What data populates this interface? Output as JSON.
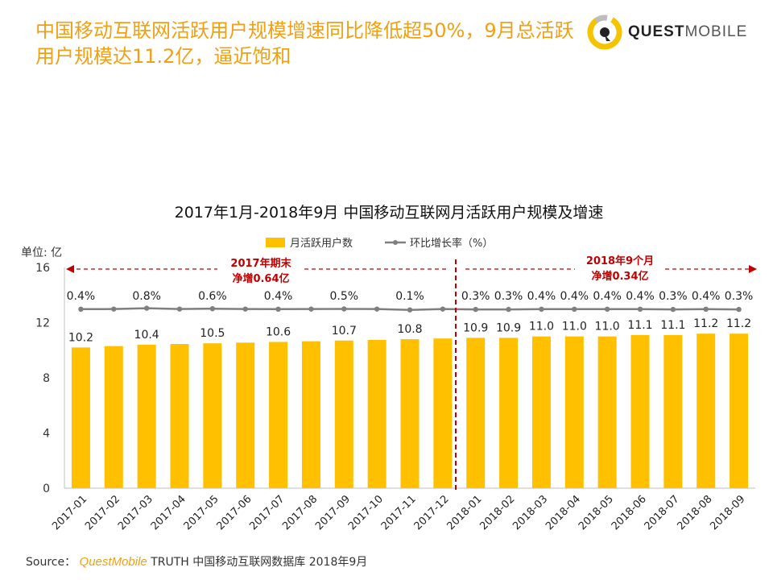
{
  "headline": "中国移动互联网活跃用户规模增速同比降低超50%，9月总活跃用户规模达11.2亿，逼近饱和",
  "logo": {
    "text_bold": "QUEST",
    "text_regular": "MOBILE"
  },
  "colors": {
    "bar": "#ffc000",
    "line": "#7f7f7f",
    "annotation": "#c00000",
    "headline": "#f0a012"
  },
  "chart_data": {
    "type": "bar",
    "title": "2017年1月-2018年9月 中国移动互联网月活跃用户规模及增速",
    "unit_label": "单位: 亿",
    "ylim": [
      0,
      16
    ],
    "yticks": [
      0,
      4,
      8,
      12,
      16
    ],
    "categories": [
      "2017-01",
      "2017-02",
      "2017-03",
      "2017-04",
      "2017-05",
      "2017-06",
      "2017-07",
      "2017-08",
      "2017-09",
      "2017-10",
      "2017-11",
      "2017-12",
      "2018-01",
      "2018-02",
      "2018-03",
      "2018-04",
      "2018-05",
      "2018-06",
      "2018-07",
      "2018-08",
      "2018-09"
    ],
    "series": [
      {
        "name": "月活跃用户数",
        "type": "bar",
        "values": [
          10.2,
          10.3,
          10.4,
          10.45,
          10.5,
          10.55,
          10.6,
          10.65,
          10.7,
          10.75,
          10.8,
          10.85,
          10.9,
          10.9,
          11.0,
          11.0,
          11.0,
          11.1,
          11.1,
          11.2,
          11.2
        ],
        "labels": [
          "10.2",
          "",
          "10.4",
          "",
          "10.5",
          "",
          "10.6",
          "",
          "10.7",
          "",
          "10.8",
          "",
          "10.9",
          "10.9",
          "11.0",
          "11.0",
          "11.0",
          "11.1",
          "11.1",
          "11.2",
          "11.2"
        ]
      },
      {
        "name": "环比增长率（%）",
        "type": "line",
        "values": [
          0.4,
          null,
          0.8,
          null,
          0.6,
          null,
          0.4,
          null,
          0.5,
          null,
          0.1,
          null,
          0.3,
          0.3,
          0.4,
          0.4,
          0.4,
          0.4,
          0.3,
          0.4,
          0.3
        ],
        "labels": [
          "0.4%",
          "",
          "0.8%",
          "",
          "0.6%",
          "",
          "0.4%",
          "",
          "0.5%",
          "",
          "0.1%",
          "",
          "0.3%",
          "0.3%",
          "0.4%",
          "0.4%",
          "0.4%",
          "0.4%",
          "0.3%",
          "0.4%",
          "0.3%"
        ]
      }
    ],
    "annotations": [
      {
        "line1": "2017年期末",
        "line2": "净增0.64亿"
      },
      {
        "line1": "2018年9个月",
        "line2": "净增0.34亿"
      }
    ]
  },
  "source": {
    "prefix": "Source：",
    "brand": "QuestMobile",
    "rest": "TRUTH 中国移动互联网数据库 2018年9月"
  }
}
